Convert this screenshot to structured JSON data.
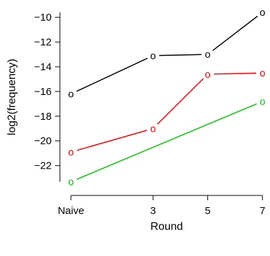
{
  "chart_data": {
    "type": "line",
    "title": "",
    "xlabel": "Round",
    "ylabel": "log2(frequency)",
    "categories": [
      "Naive",
      "3",
      "5",
      "7"
    ],
    "x": [
      0,
      3,
      5,
      7
    ],
    "xlim": [
      0,
      7
    ],
    "ylim": [
      -23.3,
      -9.6
    ],
    "yticks": [
      -22,
      -20,
      -18,
      -16,
      -14,
      -12,
      -10
    ],
    "grid": false,
    "legend": "none",
    "point_marker": "o",
    "series": [
      {
        "color": "#000000",
        "x": [
          0,
          3,
          5,
          7
        ],
        "values": [
          -16.2,
          -13.1,
          -13.0,
          -9.6
        ]
      },
      {
        "color": "#ff0000",
        "x": [
          0,
          3,
          5,
          7
        ],
        "values": [
          -20.9,
          -19.0,
          -14.6,
          -14.5
        ]
      },
      {
        "color": "#00cd00",
        "x": [
          0,
          7
        ],
        "values": [
          -23.3,
          -16.8
        ]
      }
    ]
  }
}
